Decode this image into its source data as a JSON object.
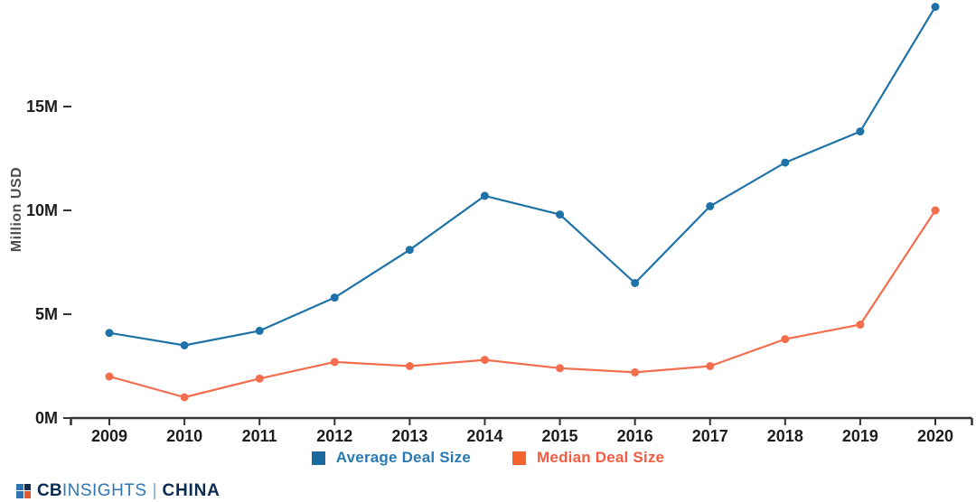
{
  "chart_data": {
    "type": "line",
    "title": "",
    "xlabel": "",
    "ylabel": "Million USD",
    "categories": [
      "2009",
      "2010",
      "2011",
      "2012",
      "2013",
      "2014",
      "2015",
      "2016",
      "2017",
      "2018",
      "2019",
      "2020"
    ],
    "y_tick_labels": [
      "0M",
      "5M",
      "10M",
      "15M"
    ],
    "y_tick_values": [
      0,
      5,
      10,
      15
    ],
    "ylim": [
      0,
      20
    ],
    "grid": false,
    "legend_position": "bottom",
    "series": [
      {
        "name": "Average Deal Size",
        "values": [
          4.1,
          3.5,
          4.2,
          5.8,
          8.1,
          10.7,
          9.8,
          6.5,
          10.2,
          12.3,
          13.8,
          19.8
        ],
        "color": "#1f72a8",
        "swatch_color": "#1a699f",
        "label_color": "#2879b4"
      },
      {
        "name": "Median Deal Size",
        "values": [
          2.0,
          1.0,
          1.9,
          2.7,
          2.5,
          2.8,
          2.4,
          2.2,
          2.5,
          3.8,
          4.5,
          10.0
        ],
        "color": "#f46e4e",
        "swatch_color": "#f4622d",
        "label_color": "#f45b42"
      }
    ],
    "axis_color": "#333333",
    "tick_label_color": "#1d1d1d"
  },
  "brand": {
    "cb": "CB",
    "insights": "INSIGHTS",
    "separator": "|",
    "region": "CHINA"
  }
}
